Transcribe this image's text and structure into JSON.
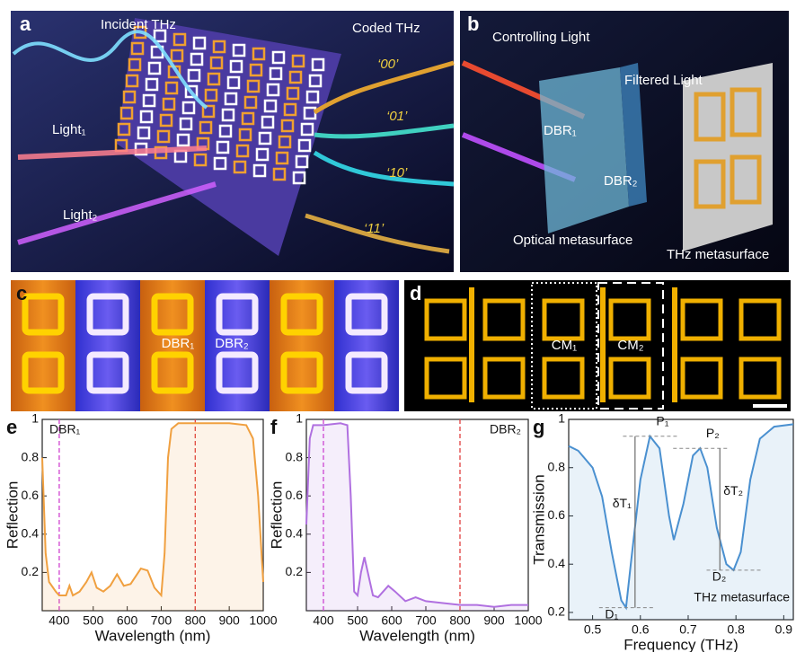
{
  "panels": {
    "a": {
      "label": "a",
      "incident": "Incident THz",
      "coded": "Coded THz",
      "light1": "Light₁",
      "light2": "Light₂",
      "codes": [
        "‘00’",
        "‘01’",
        "‘10’",
        "‘11’"
      ]
    },
    "b": {
      "label": "b",
      "controlling": "Controlling Light",
      "filtered": "Filtered Light",
      "dbr1": "DBR₁",
      "dbr2": "DBR₂",
      "optical": "Optical metasurface",
      "thz": "THz metasurface"
    },
    "c": {
      "label": "c",
      "dbr1": "DBR₁",
      "dbr2": "DBR₂"
    },
    "d": {
      "label": "d",
      "cm1": "CM₁",
      "cm2": "CM₂"
    }
  },
  "chart_data": [
    {
      "type": "line",
      "label": "e",
      "annotation": "DBR₁",
      "xlabel": "Wavelength (nm)",
      "ylabel": "Reflection",
      "color": "#f0a040",
      "x": [
        350,
        360,
        370,
        390,
        400,
        420,
        430,
        440,
        460,
        480,
        495,
        510,
        530,
        550,
        570,
        590,
        610,
        640,
        660,
        680,
        700,
        710,
        720,
        730,
        750,
        800,
        900,
        950,
        970,
        985,
        1000
      ],
      "values": [
        0.8,
        0.3,
        0.15,
        0.1,
        0.08,
        0.08,
        0.13,
        0.08,
        0.1,
        0.15,
        0.2,
        0.12,
        0.1,
        0.13,
        0.19,
        0.13,
        0.14,
        0.22,
        0.21,
        0.12,
        0.08,
        0.3,
        0.8,
        0.95,
        0.98,
        0.98,
        0.98,
        0.97,
        0.9,
        0.6,
        0.15
      ],
      "vlines": [
        {
          "value": 400,
          "color": "#d040d0"
        },
        {
          "value": 800,
          "color": "#e04040"
        }
      ],
      "xlim": [
        350,
        1000
      ],
      "xticks": [
        400,
        500,
        600,
        700,
        800,
        900,
        1000
      ],
      "ylim": [
        0,
        1
      ],
      "yticks": [
        0.2,
        0.4,
        0.6,
        0.8,
        1
      ]
    },
    {
      "type": "line",
      "label": "f",
      "annotation": "DBR₂",
      "xlabel": "Wavelength (nm)",
      "ylabel": "Reflection",
      "color": "#b070e0",
      "x": [
        350,
        360,
        370,
        400,
        450,
        470,
        480,
        490,
        500,
        510,
        520,
        530,
        545,
        560,
        590,
        610,
        640,
        670,
        700,
        750,
        800,
        850,
        900,
        950,
        1000
      ],
      "values": [
        0.45,
        0.9,
        0.97,
        0.97,
        0.98,
        0.97,
        0.6,
        0.1,
        0.08,
        0.2,
        0.28,
        0.2,
        0.08,
        0.07,
        0.13,
        0.1,
        0.05,
        0.07,
        0.05,
        0.04,
        0.03,
        0.03,
        0.02,
        0.03,
        0.03
      ],
      "vlines": [
        {
          "value": 400,
          "color": "#d040d0"
        },
        {
          "value": 800,
          "color": "#e04040"
        }
      ],
      "xlim": [
        350,
        1000
      ],
      "xticks": [
        400,
        500,
        600,
        700,
        800,
        900,
        1000
      ],
      "ylim": [
        0,
        1
      ],
      "yticks": [
        0.2,
        0.4,
        0.6,
        0.8,
        1
      ]
    },
    {
      "type": "line",
      "label": "g",
      "annotation": "THz metasurface",
      "xlabel": "Frequency (THz)",
      "ylabel": "Transmission",
      "color": "#4a90d0",
      "x": [
        0.45,
        0.47,
        0.5,
        0.52,
        0.54,
        0.56,
        0.57,
        0.58,
        0.6,
        0.62,
        0.64,
        0.66,
        0.67,
        0.69,
        0.71,
        0.725,
        0.74,
        0.76,
        0.78,
        0.795,
        0.81,
        0.83,
        0.85,
        0.88,
        0.92
      ],
      "values": [
        0.89,
        0.87,
        0.8,
        0.68,
        0.45,
        0.25,
        0.22,
        0.4,
        0.75,
        0.93,
        0.88,
        0.6,
        0.5,
        0.65,
        0.85,
        0.88,
        0.8,
        0.55,
        0.4,
        0.375,
        0.45,
        0.75,
        0.92,
        0.97,
        0.98
      ],
      "peaks": [
        {
          "label": "P₁",
          "x": 0.62,
          "y": 0.93
        },
        {
          "label": "D₁",
          "x": 0.57,
          "y": 0.22
        },
        {
          "label": "P₂",
          "x": 0.725,
          "y": 0.88
        },
        {
          "label": "D₂",
          "x": 0.795,
          "y": 0.375
        }
      ],
      "delta_labels": [
        "δT₁",
        "δT₂"
      ],
      "xlim": [
        0.45,
        0.92
      ],
      "xticks": [
        0.5,
        0.6,
        0.7,
        0.8,
        0.9
      ],
      "ylim": [
        0.17,
        1
      ],
      "yticks": [
        0.2,
        0.4,
        0.6,
        0.8,
        1
      ]
    }
  ]
}
